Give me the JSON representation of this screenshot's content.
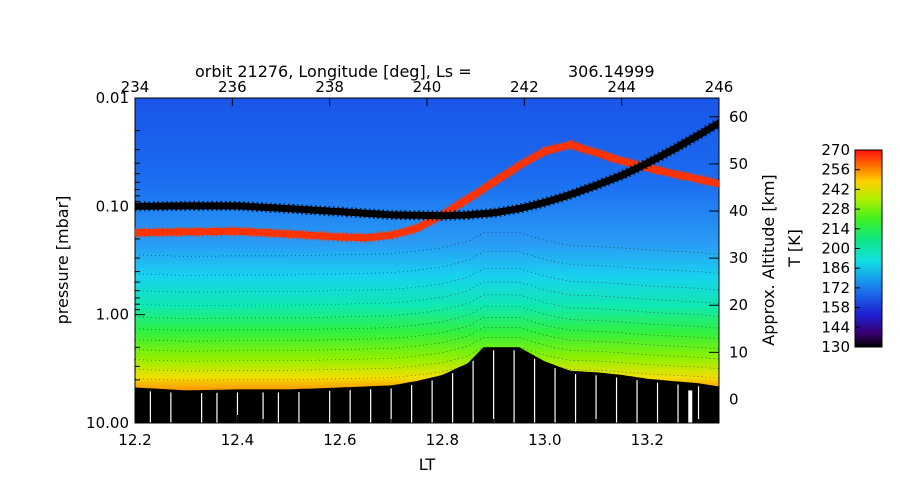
{
  "chart_data": {
    "type": "heatmap",
    "title": "orbit 21276, Longitude [deg], Ls =",
    "title_value": "306.14999",
    "xlabel": "LT",
    "ylabel": "pressure [mbar]",
    "y2label": "Approx. Altitude [km]",
    "colorbar_label": "T [K]",
    "xlim": [
      12.2,
      13.34
    ],
    "ylim": [
      10.0,
      0.01
    ],
    "y_scale": "log",
    "y2lim": [
      -5,
      64
    ],
    "x_ticks": [
      "12.2",
      "12.4",
      "12.6",
      "12.8",
      "13.0",
      "13.2"
    ],
    "x_tick_values": [
      12.2,
      12.4,
      12.6,
      12.8,
      13.0,
      13.2
    ],
    "y_ticks": [
      "0.01",
      "0.10",
      "1.00",
      "10.00"
    ],
    "y_tick_values": [
      0.01,
      0.1,
      1.0,
      10.0
    ],
    "y2_ticks": [
      "0",
      "10",
      "20",
      "30",
      "40",
      "50",
      "60"
    ],
    "y2_tick_values": [
      0,
      10,
      20,
      30,
      40,
      50,
      60
    ],
    "top_axis_ticks": [
      "234",
      "236",
      "238",
      "240",
      "242",
      "244",
      "246"
    ],
    "top_axis_values": [
      234,
      236,
      238,
      240,
      242,
      244,
      246
    ],
    "top_axis_lt_positions": [
      12.2,
      12.39,
      12.58,
      12.77,
      12.96,
      13.15,
      13.34
    ],
    "colorbar_ticks": [
      "270",
      "256",
      "242",
      "228",
      "214",
      "200",
      "186",
      "172",
      "158",
      "144",
      "130"
    ],
    "colorbar_values": [
      270,
      256,
      242,
      228,
      214,
      200,
      186,
      172,
      158,
      144,
      130
    ],
    "colors": {
      "lower_curve": "#ff3300",
      "upper_curve": "#000000",
      "surface": "#000000"
    },
    "series": [
      {
        "x": [
          12.2,
          12.3,
          12.4,
          12.5,
          12.6,
          12.65,
          12.7,
          12.75,
          12.8,
          12.85,
          12.9,
          12.95,
          13.0,
          13.05,
          13.1,
          13.15,
          13.2,
          13.25,
          13.3,
          13.34
        ],
        "y": [
          0.175,
          0.172,
          0.17,
          0.18,
          0.192,
          0.195,
          0.185,
          0.16,
          0.12,
          0.085,
          0.06,
          0.042,
          0.031,
          0.027,
          0.032,
          0.038,
          0.044,
          0.05,
          0.056,
          0.062
        ]
      },
      {
        "x": [
          12.2,
          12.3,
          12.4,
          12.5,
          12.6,
          12.7,
          12.8,
          12.85,
          12.9,
          12.95,
          13.0,
          13.05,
          13.1,
          13.15,
          13.2,
          13.25,
          13.3,
          13.34
        ],
        "y": [
          0.1,
          0.099,
          0.099,
          0.105,
          0.112,
          0.12,
          0.122,
          0.12,
          0.115,
          0.105,
          0.092,
          0.078,
          0.064,
          0.052,
          0.04,
          0.03,
          0.022,
          0.017
        ]
      }
    ],
    "surface_pressure": {
      "x": [
        12.2,
        12.3,
        12.4,
        12.5,
        12.6,
        12.7,
        12.75,
        12.8,
        12.85,
        12.88,
        12.95,
        13.0,
        13.05,
        13.1,
        13.15,
        13.2,
        13.25,
        13.3,
        13.34
      ],
      "y": [
        4.7,
        5.0,
        4.9,
        4.9,
        4.7,
        4.5,
        4.1,
        3.6,
        2.8,
        2.0,
        2.0,
        2.7,
        3.3,
        3.4,
        3.6,
        3.9,
        4.1,
        4.3,
        4.6
      ]
    }
  }
}
